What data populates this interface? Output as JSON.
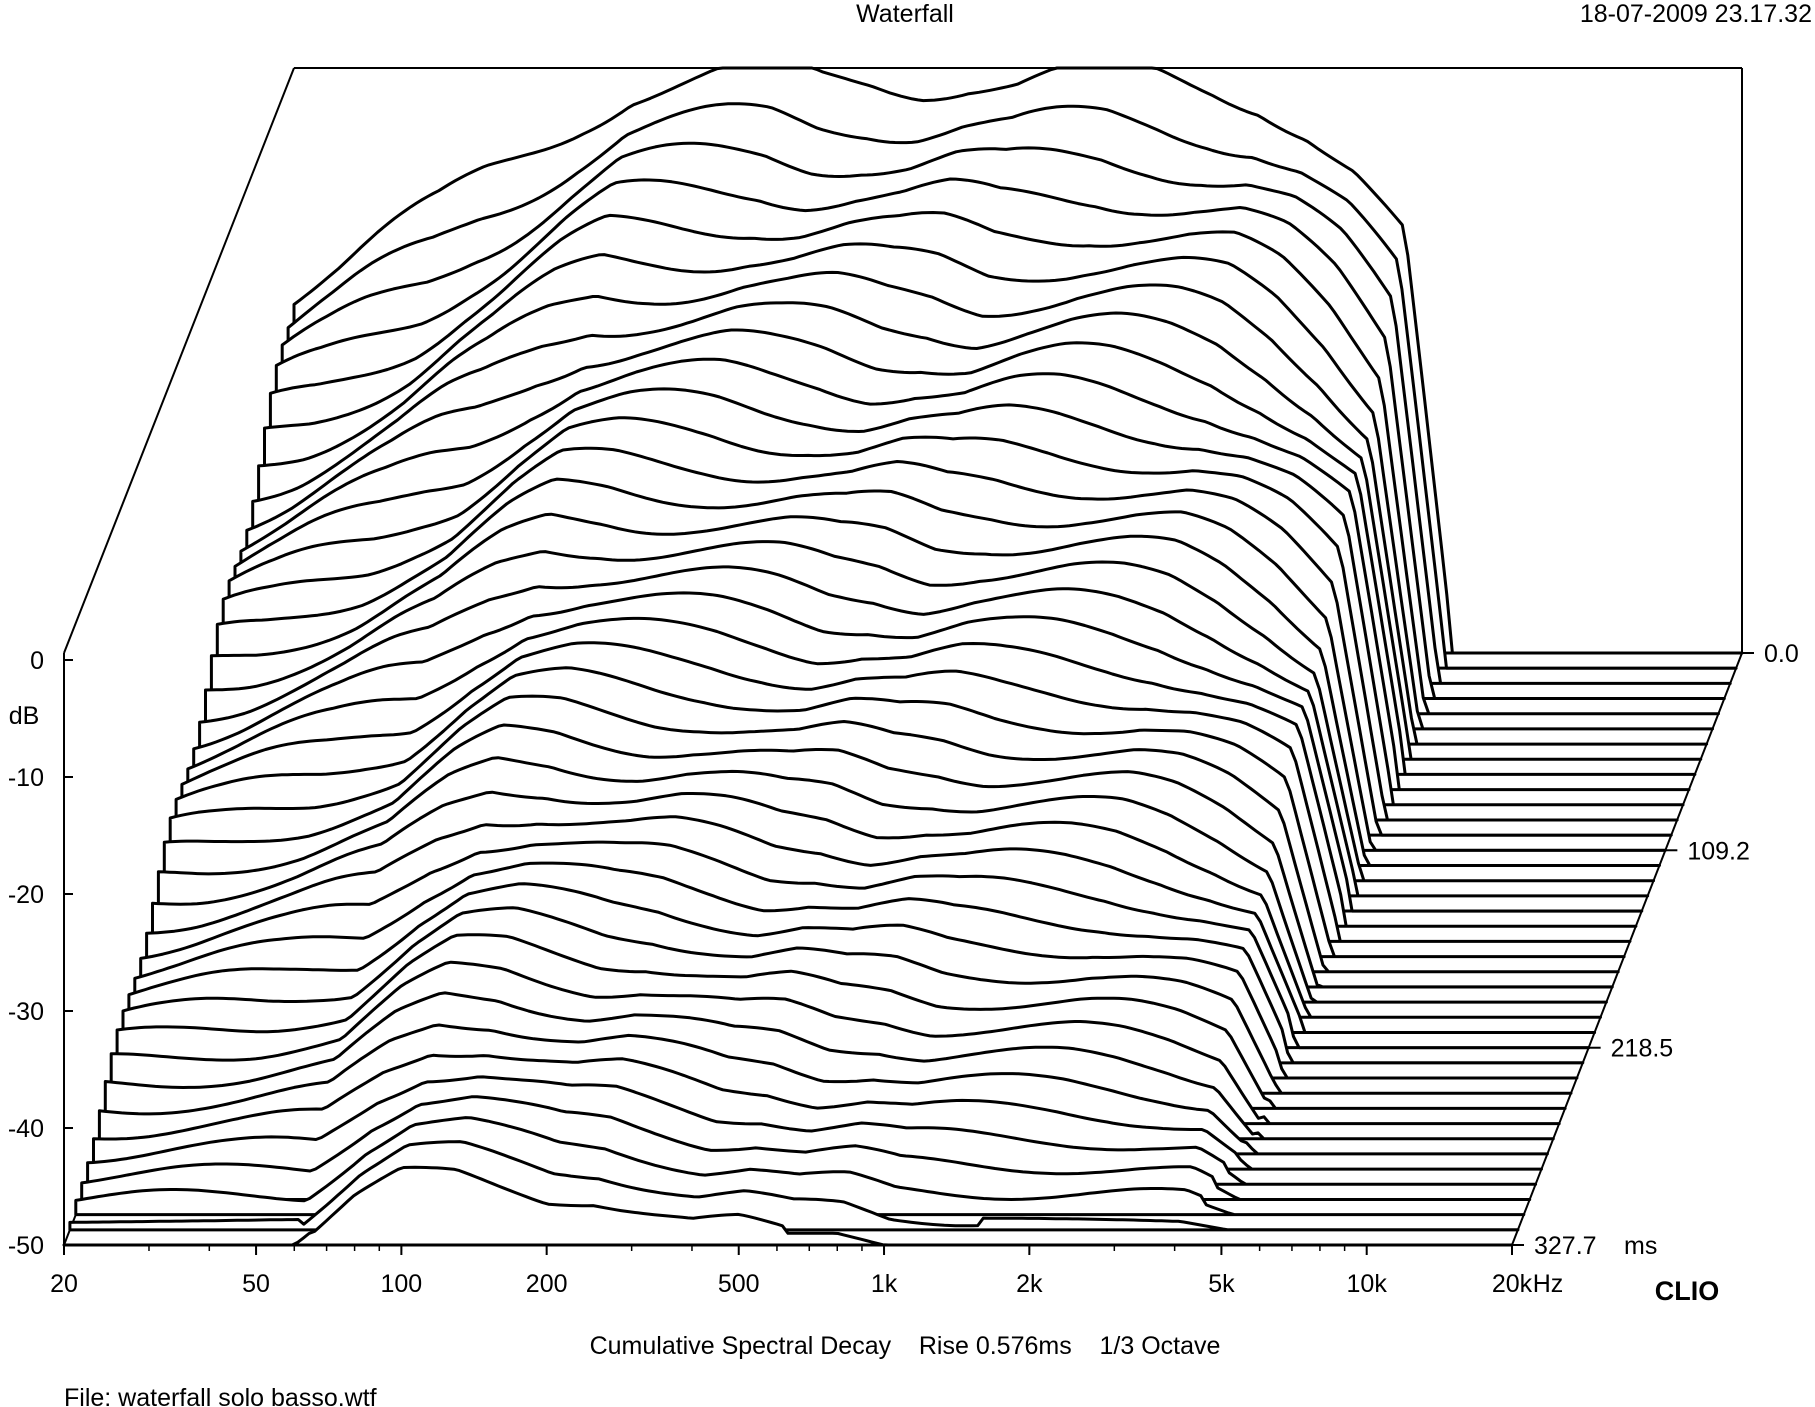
{
  "header": {
    "title": "Waterfall",
    "timestamp": "18-07-2009 23.17.32"
  },
  "footer": {
    "measurement": "Cumulative Spectral Decay    Rise 0.576ms    1/3 Octave",
    "file": "File: waterfall solo basso.wtf",
    "brand": "CLIO"
  },
  "chart_data": {
    "type": "waterfall",
    "title": "Waterfall",
    "subtitle": "Cumulative Spectral Decay    Rise 0.576ms    1/3 Octave",
    "xlabel": "Hz",
    "ylabel": "dB",
    "zlabel": "ms",
    "x_scale": "log",
    "xlim": [
      20,
      20000
    ],
    "ylim": [
      -50,
      0
    ],
    "zlim": [
      0.0,
      327.7
    ],
    "x_tick_labels": [
      "20",
      "50",
      "100",
      "200",
      "500",
      "1k",
      "2k",
      "5k",
      "10k",
      "20k"
    ],
    "x_ticks": [
      20,
      50,
      100,
      200,
      500,
      1000,
      2000,
      5000,
      10000,
      20000
    ],
    "y_tick_labels": [
      "0",
      "-10",
      "-20",
      "-30",
      "-40",
      "-50"
    ],
    "y_ticks": [
      0,
      -10,
      -20,
      -30,
      -40,
      -50
    ],
    "z_tick_labels": [
      "0.0",
      "109.2",
      "218.5",
      "327.7"
    ],
    "z_ticks": [
      0.0,
      109.2,
      218.5,
      327.7
    ],
    "slice_count": 40,
    "envelope_db_vs_hz": {
      "x": [
        20,
        25,
        30,
        40,
        50,
        60,
        80,
        100,
        130,
        160,
        200,
        250,
        315,
        400,
        500,
        630,
        800,
        1000,
        1250,
        1600,
        2000,
        2500,
        3150,
        4000,
        5000
      ],
      "first_slice_db": [
        -19,
        -17,
        -15,
        -12,
        -9,
        -7,
        -4,
        -2,
        -1.5,
        -1,
        -0.5,
        -1,
        -0.8,
        -1.2,
        -1,
        -1.5,
        -1,
        -0.5,
        -0.8,
        -1.5,
        -2.5,
        -5,
        -9,
        -15,
        -50
      ],
      "last_slice_db": [
        -50,
        -50,
        -50,
        -50,
        -50,
        -50,
        -46,
        -44,
        -44,
        -45,
        -46,
        -46,
        -47,
        -48,
        -48,
        -49,
        -49,
        -50,
        -50,
        -50,
        -50,
        -50,
        -50,
        -50,
        -50
      ]
    }
  }
}
